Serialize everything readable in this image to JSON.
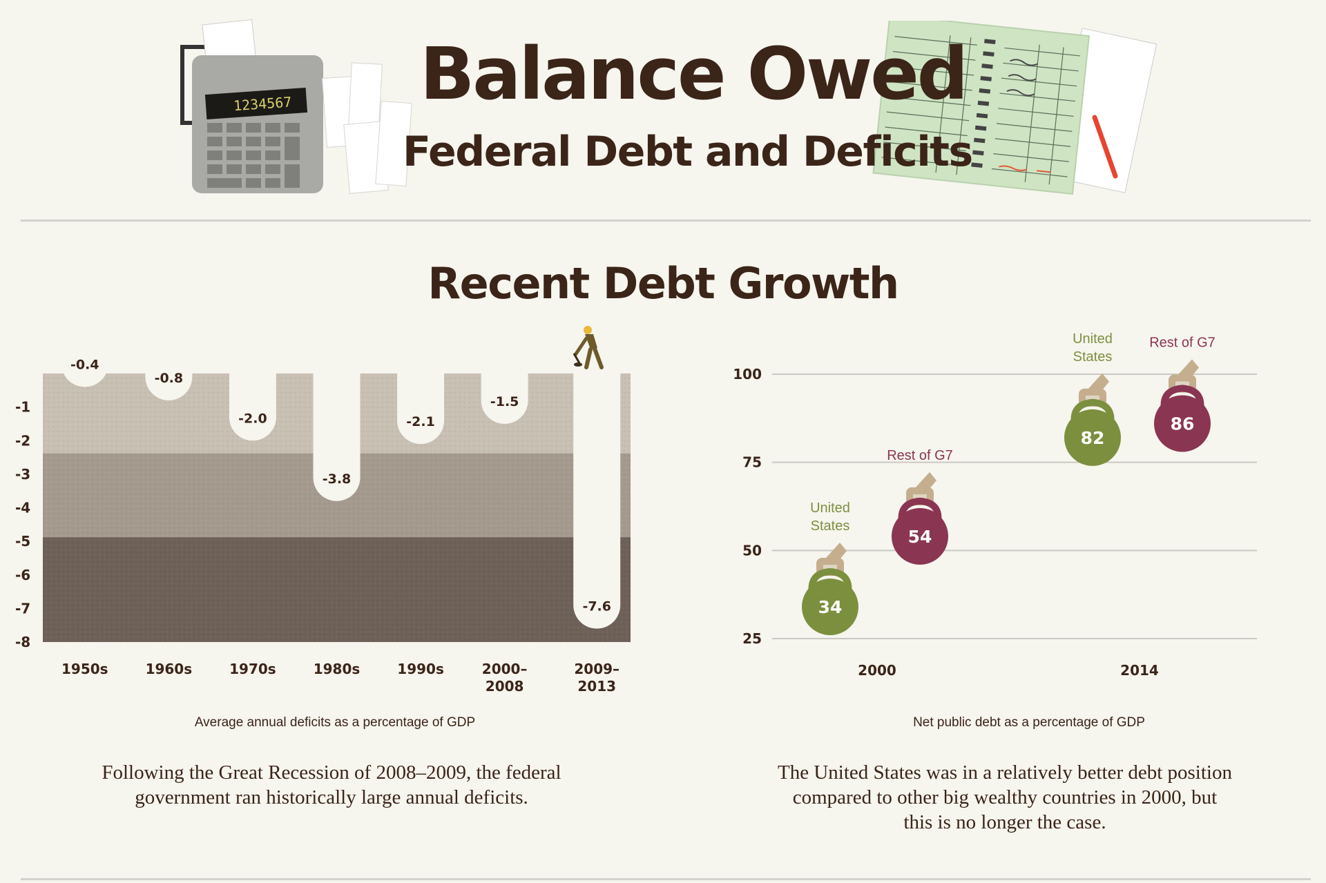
{
  "header": {
    "title": "Balance Owed",
    "subtitle": "Federal Debt and Deficits",
    "calculator_display": "1234567"
  },
  "section_title": "Recent Debt Growth",
  "colors": {
    "title": "#3b2418",
    "us_green": "#7c8f3e",
    "g7_maroon": "#8a3552",
    "band_light": "#c9c0b4",
    "band_mid": "#a59a8e",
    "band_dark": "#6d6158",
    "hand": "#c4ae8e"
  },
  "chart_data": [
    {
      "type": "bar",
      "categories": [
        "1950s",
        "1960s",
        "1970s",
        "1980s",
        "1990s",
        "2000–2008",
        "2009–2013"
      ],
      "values": [
        -0.4,
        -0.8,
        -2.0,
        -3.8,
        -2.1,
        -1.5,
        -7.6
      ],
      "value_labels": [
        "-0.4",
        "-0.8",
        "-2.0",
        "-3.8",
        "-2.1",
        "-1.5",
        "-7.6"
      ],
      "y_ticks": [
        "-1",
        "-2",
        "-3",
        "-4",
        "-5",
        "-6",
        "-7",
        "-8"
      ],
      "ylim": [
        -8,
        0
      ],
      "xlabel": "Average annual deficits as a percentage of GDP",
      "caption": "Following the Great Recession of 2008–2009, the federal government ran historically large annual deficits."
    },
    {
      "type": "scatter",
      "categories": [
        "2000",
        "2014"
      ],
      "series": [
        {
          "name": "United States",
          "values": [
            34,
            82
          ]
        },
        {
          "name": "Rest of G7",
          "values": [
            54,
            86
          ]
        }
      ],
      "series_label_lines": [
        [
          "United",
          "States"
        ],
        [
          "Rest of G7"
        ]
      ],
      "y_ticks": [
        "100",
        "75",
        "50",
        "25"
      ],
      "ylim": [
        25,
        100
      ],
      "grid": true,
      "xlabel": "Net public debt as a percentage of GDP",
      "caption": "The United States was in a relatively better debt position compared to other big wealthy countries in 2000, but this is no longer the case."
    }
  ]
}
